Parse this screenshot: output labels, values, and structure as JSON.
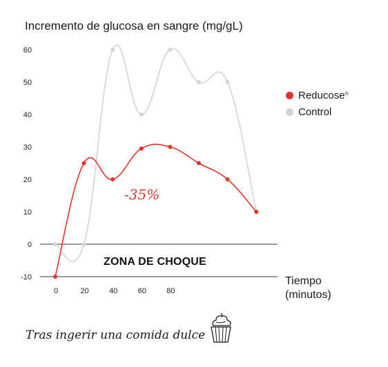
{
  "chart_data": {
    "type": "line",
    "title": "Incremento de glucosa en sangre (mg/gL)",
    "xlabel_line1": "Tiempo",
    "xlabel_line2": "(minutos)",
    "x_ticks": [
      "0",
      "20",
      "40",
      "60",
      "80"
    ],
    "y_ticks": [
      "60",
      "50",
      "40",
      "30",
      "20",
      "10",
      "0",
      "-10"
    ],
    "ylim": [
      -10,
      60
    ],
    "x": [
      0,
      20,
      40,
      60,
      80,
      100,
      120,
      140
    ],
    "series": [
      {
        "name": "Reducose",
        "name_mark": "®",
        "color": "#e3342c",
        "values": [
          -10,
          25,
          20,
          29.5,
          30,
          25,
          20,
          10
        ]
      },
      {
        "name": "Control",
        "color": "#d3d3d3",
        "values": [
          0,
          0,
          60,
          40,
          60,
          50,
          50,
          10
        ]
      }
    ],
    "legend_position": "right",
    "grid": false,
    "zone_label": "ZONA DE CHOQUE",
    "annotation": "-35%"
  },
  "caption": "Tras ingerir una comida dulce",
  "cupcake_icon": "cupcake-icon"
}
